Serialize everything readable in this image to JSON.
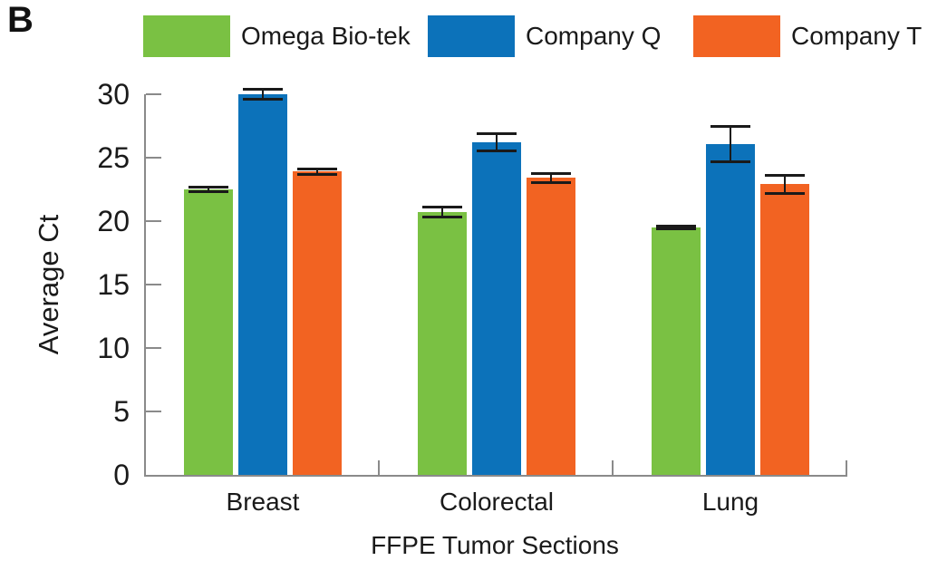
{
  "panel_label": "B",
  "legend": {
    "items": [
      {
        "label": "Omega Bio-tek",
        "color": "#7AC143"
      },
      {
        "label": "Company Q",
        "color": "#0C72BA"
      },
      {
        "label": "Company T",
        "color": "#F26322"
      }
    ]
  },
  "chart_data": {
    "type": "bar",
    "title": "",
    "xlabel": "FFPE Tumor Sections",
    "ylabel": "Average Ct",
    "categories": [
      "Breast",
      "Colorectal",
      "Lung"
    ],
    "series": [
      {
        "name": "Omega Bio-tek",
        "color": "#7AC143",
        "values": [
          22.5,
          20.7,
          19.5
        ],
        "errors": [
          0.15,
          0.35,
          0.1
        ]
      },
      {
        "name": "Company Q",
        "color": "#0C72BA",
        "values": [
          30.0,
          26.2,
          26.1
        ],
        "errors": [
          0.35,
          0.65,
          1.35
        ]
      },
      {
        "name": "Company T",
        "color": "#F26322",
        "values": [
          23.9,
          23.4,
          22.9
        ],
        "errors": [
          0.15,
          0.3,
          0.7
        ]
      }
    ],
    "ylim": [
      0,
      30
    ],
    "yticks": [
      0,
      5,
      10,
      15,
      20,
      25,
      30
    ],
    "grid": false,
    "legend_position": "top",
    "error_bars": true,
    "axis_color": "#8A8A8A",
    "error_color": "#1A1A1A"
  }
}
